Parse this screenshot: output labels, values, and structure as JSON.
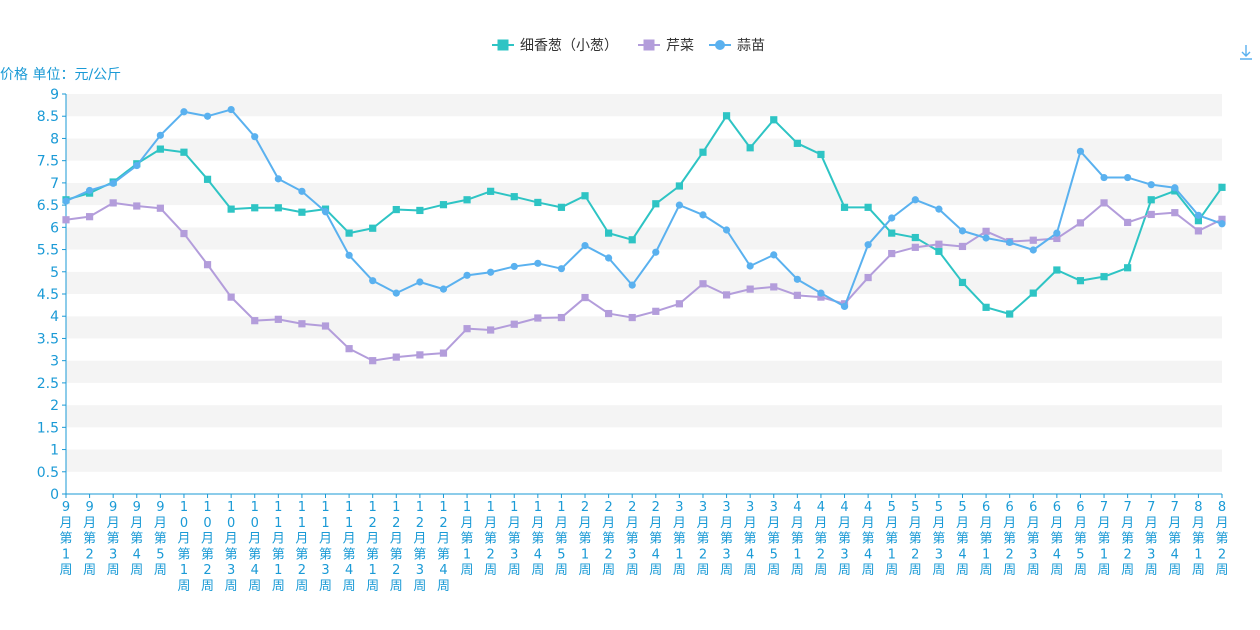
{
  "chart_data": {
    "type": "line",
    "ylabel": "价格 单位：元/公斤",
    "ylim": [
      0,
      9
    ],
    "yticks": [
      "0",
      "0.5",
      "1",
      "1.5",
      "2",
      "2.5",
      "3",
      "3.5",
      "4",
      "4.5",
      "5",
      "5.5",
      "6",
      "6.5",
      "7",
      "7.5",
      "8",
      "8.5",
      "9"
    ],
    "grid": true,
    "legend_position": "top-center",
    "download_icon": "download-icon",
    "categories": [
      "9月第1周",
      "9月第2周",
      "9月第3周",
      "9月第4周",
      "9月第5周",
      "10月第1周",
      "10月第2周",
      "10月第3周",
      "10月第4周",
      "11月第1周",
      "11月第2周",
      "11月第3周",
      "11月第4周",
      "12月第1周",
      "12月第2周",
      "12月第3周",
      "12月第4周",
      "1月第1周",
      "1月第2周",
      "1月第3周",
      "1月第4周",
      "1月第5周",
      "2月第1周",
      "2月第2周",
      "2月第3周",
      "2月第4周",
      "3月第1周",
      "3月第2周",
      "3月第3周",
      "3月第4周",
      "3月第5周",
      "4月第1周",
      "4月第2周",
      "4月第3周",
      "4月第4周",
      "5月第1周",
      "5月第2周",
      "5月第3周",
      "5月第4周",
      "6月第1周",
      "6月第2周",
      "6月第3周",
      "6月第4周",
      "6月第5周",
      "7月第1周",
      "7月第2周",
      "7月第3周",
      "7月第4周",
      "8月第1周",
      "8月第2周"
    ],
    "series": [
      {
        "name": "细香葱（小葱）",
        "color": "#2ec4c4",
        "marker": "square",
        "values": [
          6.62,
          6.77,
          7.02,
          7.43,
          7.76,
          7.69,
          7.08,
          6.41,
          6.44,
          6.44,
          6.34,
          6.41,
          5.87,
          5.98,
          6.4,
          6.38,
          6.51,
          6.62,
          6.81,
          6.69,
          6.56,
          6.45,
          6.71,
          5.87,
          5.72,
          6.53,
          6.93,
          7.69,
          8.51,
          7.79,
          8.42,
          7.89,
          7.64,
          6.45,
          6.45,
          5.87,
          5.77,
          5.46,
          4.76,
          4.2,
          4.05,
          4.52,
          5.04,
          4.8,
          4.89,
          5.09,
          6.62,
          6.82,
          6.15,
          6.9
        ]
      },
      {
        "name": "芹菜",
        "color": "#b39ddb",
        "marker": "square",
        "values": [
          6.17,
          6.24,
          6.55,
          6.48,
          6.43,
          5.86,
          5.16,
          4.43,
          3.9,
          3.93,
          3.83,
          3.78,
          3.27,
          3.0,
          3.08,
          3.13,
          3.17,
          3.72,
          3.69,
          3.82,
          3.96,
          3.97,
          4.42,
          4.06,
          3.97,
          4.11,
          4.28,
          4.73,
          4.48,
          4.61,
          4.66,
          4.47,
          4.43,
          4.28,
          4.87,
          5.41,
          5.55,
          5.62,
          5.57,
          5.91,
          5.68,
          5.71,
          5.75,
          6.1,
          6.55,
          6.11,
          6.29,
          6.33,
          5.92,
          6.18
        ]
      },
      {
        "name": "蒜苗",
        "color": "#5ab1ef",
        "marker": "circle",
        "values": [
          6.59,
          6.83,
          6.99,
          7.39,
          8.07,
          8.6,
          8.5,
          8.65,
          8.04,
          7.09,
          6.81,
          6.35,
          5.37,
          4.8,
          4.52,
          4.77,
          4.61,
          4.92,
          4.99,
          5.12,
          5.19,
          5.07,
          5.59,
          5.31,
          4.7,
          5.44,
          6.5,
          6.28,
          5.94,
          5.13,
          5.38,
          4.83,
          4.52,
          4.22,
          5.61,
          6.21,
          6.62,
          6.41,
          5.92,
          5.76,
          5.66,
          5.49,
          5.87,
          7.71,
          7.12,
          7.12,
          6.96,
          6.89,
          6.27,
          6.08
        ]
      }
    ]
  }
}
